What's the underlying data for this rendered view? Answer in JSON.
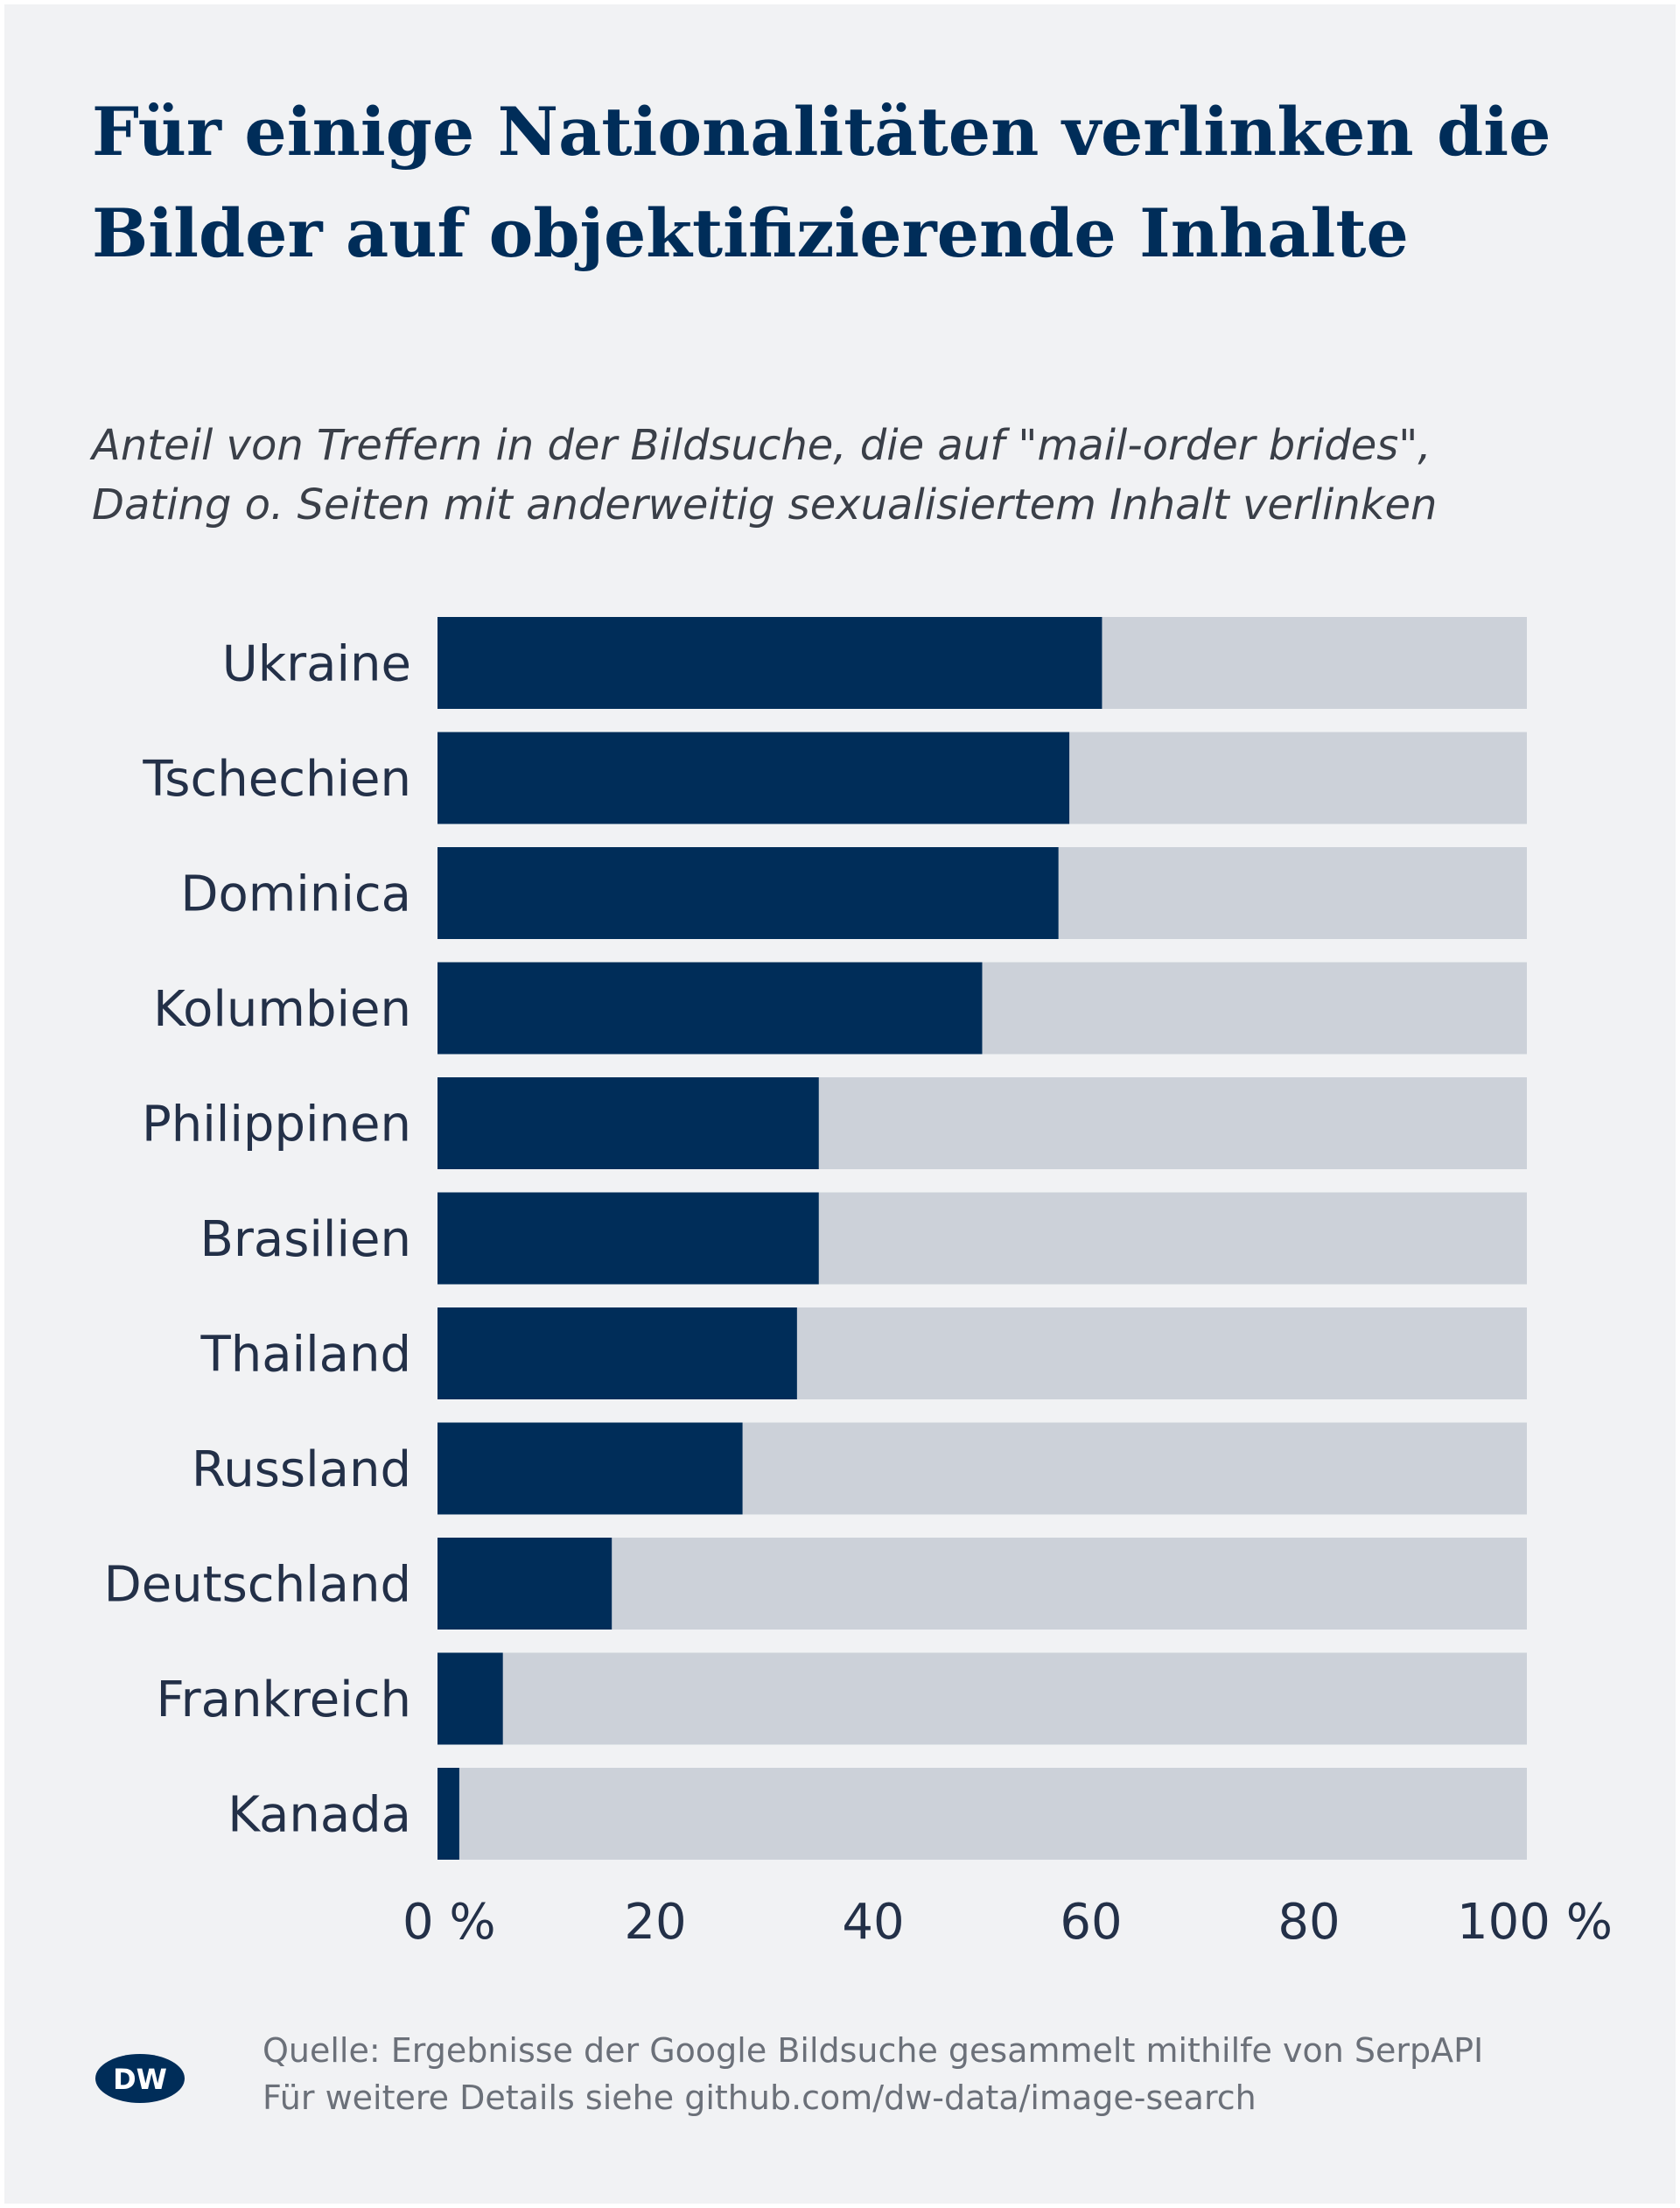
{
  "title_line1": "Für einige Nationalitäten verlinken die",
  "title_line2": "Bilder auf objektifizierende Inhalte",
  "subtitle_line1": "Anteil von Treffern in der Bildsuche, die auf \"mail-order brides\",",
  "subtitle_line2": "Dating o. Seiten mit anderweitig sexualisiertem Inhalt verlinken",
  "colors": {
    "background": "#f1f2f4",
    "bar_value": "#002d59",
    "bar_remainder": "#ccd1d9",
    "title": "#002d59",
    "text": "#233048"
  },
  "chart_data": {
    "type": "bar",
    "orientation": "horizontal",
    "stacked_to_100": true,
    "categories": [
      "Ukraine",
      "Tschechien",
      "Dominica",
      "Kolumbien",
      "Philippinen",
      "Brasilien",
      "Thailand",
      "Russland",
      "Deutschland",
      "Frankreich",
      "Kanada"
    ],
    "values": [
      61,
      58,
      57,
      50,
      35,
      35,
      33,
      28,
      16,
      6,
      2
    ],
    "xlim": [
      0,
      100
    ],
    "xticks": [
      "0 %",
      "20",
      "40",
      "60",
      "80",
      "100 %"
    ],
    "xtick_values": [
      0,
      20,
      40,
      60,
      80,
      100
    ],
    "grid": false
  },
  "footer": {
    "logo_text": "DW",
    "source_line1": "Quelle: Ergebnisse der Google Bildsuche gesammelt mithilfe von SerpAPI",
    "source_line2": "Für weitere Details siehe github.com/dw-data/image-search"
  }
}
